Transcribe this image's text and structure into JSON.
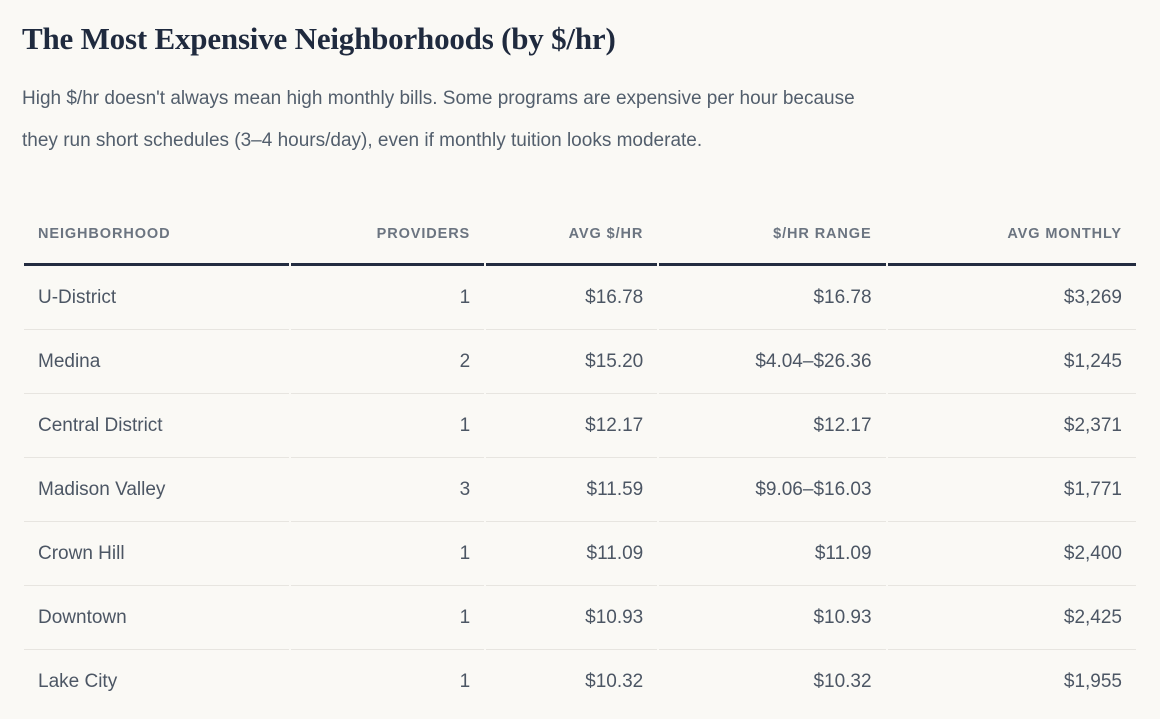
{
  "page": {
    "title": "The Most Expensive Neighborhoods (by $/hr)",
    "intro_lines": [
      "High $/hr doesn't always mean high monthly bills. Some programs are expensive per hour because",
      "they run short schedules (3–4 hours/day), even if monthly tuition looks moderate."
    ]
  },
  "chart_data": {
    "type": "table",
    "title": "The Most Expensive Neighborhoods (by $/hr)",
    "columns": [
      "NEIGHBORHOOD",
      "PROVIDERS",
      "AVG $/HR",
      "$/HR RANGE",
      "AVG MONTHLY"
    ],
    "rows": [
      [
        "U-District",
        "1",
        "$16.78",
        "$16.78",
        "$3,269"
      ],
      [
        "Medina",
        "2",
        "$15.20",
        "$4.04–$26.36",
        "$1,245"
      ],
      [
        "Central District",
        "1",
        "$12.17",
        "$12.17",
        "$2,371"
      ],
      [
        "Madison Valley",
        "3",
        "$11.59",
        "$9.06–$16.03",
        "$1,771"
      ],
      [
        "Crown Hill",
        "1",
        "$11.09",
        "$11.09",
        "$2,400"
      ],
      [
        "Downtown",
        "1",
        "$10.93",
        "$10.93",
        "$2,425"
      ],
      [
        "Lake City",
        "1",
        "$10.32",
        "$10.32",
        "$1,955"
      ]
    ]
  },
  "colors": {
    "background": "#FAF9F5",
    "title": "#1F2A3E",
    "header_rule": "#232C40",
    "row_rule": "#E7E5E0",
    "body_text": "#525E6C",
    "header_text": "#6B7480",
    "cell_text": "#4C5664"
  }
}
